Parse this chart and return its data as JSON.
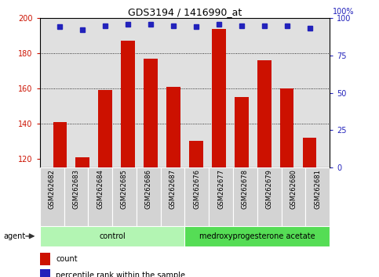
{
  "title": "GDS3194 / 1416990_at",
  "samples": [
    "GSM262682",
    "GSM262683",
    "GSM262684",
    "GSM262685",
    "GSM262686",
    "GSM262687",
    "GSM262676",
    "GSM262677",
    "GSM262678",
    "GSM262679",
    "GSM262680",
    "GSM262681"
  ],
  "counts": [
    141,
    121,
    159,
    187,
    177,
    161,
    130,
    194,
    155,
    176,
    160,
    132
  ],
  "percentile_ranks": [
    94,
    92,
    95,
    96,
    96,
    95,
    94,
    96,
    95,
    95,
    95,
    93
  ],
  "groups": [
    {
      "label": "control",
      "start": 0,
      "end": 6,
      "color": "#b3f5b3"
    },
    {
      "label": "medroxyprogesterone acetate",
      "start": 6,
      "end": 12,
      "color": "#55dd55"
    }
  ],
  "ylim_left": [
    115,
    200
  ],
  "ylim_right": [
    0,
    100
  ],
  "yticks_left": [
    120,
    140,
    160,
    180,
    200
  ],
  "yticks_right": [
    0,
    25,
    50,
    75,
    100
  ],
  "bar_color": "#cc1100",
  "dot_color": "#2222bb",
  "bar_bottom": 115,
  "bg_color": "#e0e0e0",
  "agent_label": "agent",
  "legend_count": "count",
  "legend_pct": "percentile rank within the sample",
  "grid_yticks": [
    140,
    160,
    180
  ],
  "title_fontsize": 9,
  "tick_fontsize": 7,
  "label_fontsize": 7
}
